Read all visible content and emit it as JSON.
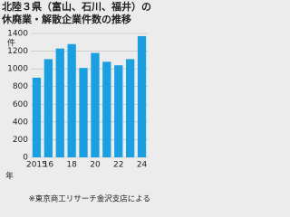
{
  "chart_data": {
    "type": "bar",
    "title": [
      "北陸３県（富山、石川、福井）の",
      "休廃業・解散企業件数の推移"
    ],
    "y_unit": "件",
    "x_unit": "年",
    "categories": [
      "2015",
      "16",
      null,
      "18",
      null,
      "20",
      null,
      "22",
      null,
      "24"
    ],
    "values": [
      900,
      1110,
      1230,
      1280,
      1010,
      1180,
      1080,
      1040,
      1110,
      1370
    ],
    "color": "#1a9fe0",
    "ylim": [
      0,
      1400
    ],
    "yticks": [
      0,
      200,
      400,
      600,
      800,
      1000,
      1200,
      1400
    ],
    "grid": true,
    "source": "※東京商工リサーチ金沢支店による"
  }
}
